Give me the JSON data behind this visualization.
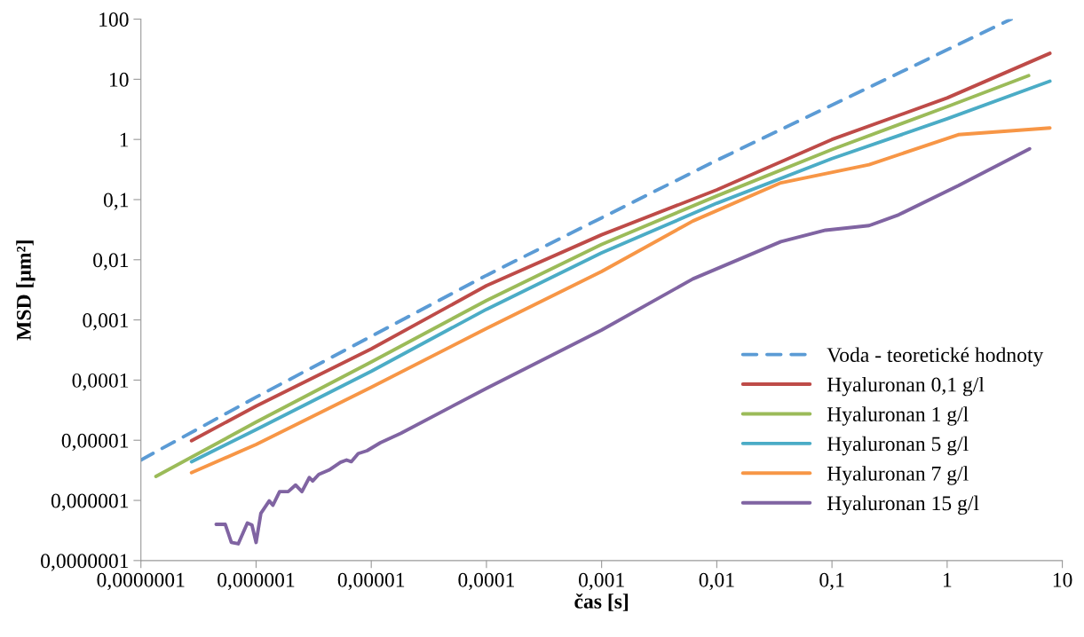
{
  "chart_data": {
    "type": "line",
    "xlabel": "čas [s]",
    "ylabel": "MSD [µm²]",
    "log": "xy",
    "grid": false,
    "legend": "bottom right",
    "marker": "none",
    "xlim": [
      1e-07,
      10
    ],
    "ylim": [
      1e-07,
      100
    ],
    "xticks": [
      {
        "value": 1e-07,
        "label": "0,0000001"
      },
      {
        "value": 1e-06,
        "label": "0,000001"
      },
      {
        "value": 1e-05,
        "label": "0,00001"
      },
      {
        "value": 0.0001,
        "label": "0,0001"
      },
      {
        "value": 0.001,
        "label": "0,001"
      },
      {
        "value": 0.01,
        "label": "0,01"
      },
      {
        "value": 0.1,
        "label": "0,1"
      },
      1,
      10
    ],
    "yticks": [
      {
        "value": 1e-07,
        "label": "0,0000001"
      },
      {
        "value": 1e-06,
        "label": "0,000001"
      },
      {
        "value": 1e-05,
        "label": "0,00001"
      },
      {
        "value": 0.0001,
        "label": "0,0001"
      },
      {
        "value": 0.001,
        "label": "0,001"
      },
      {
        "value": 0.01,
        "label": "0,01"
      },
      {
        "value": 0.1,
        "label": "0,1"
      },
      1,
      10,
      100
    ],
    "series": [
      {
        "name": "Voda - teoretické hodnoty",
        "color": "#5b9bd5",
        "line_style": "dashed",
        "x": [
          1e-07,
          1e-06,
          0.0001,
          0.01,
          3.6
        ],
        "values": [
          4.7e-06,
          5.2e-05,
          0.0055,
          0.45,
          100
        ]
      },
      {
        "name": "Hyaluronan 0,1 g/l",
        "color": "#be4b48",
        "line_style": "solid",
        "x": [
          2.75e-07,
          1e-06,
          1e-05,
          0.0001,
          0.001,
          0.01,
          0.1,
          1,
          7.8
        ],
        "values": [
          9.8e-06,
          3.7e-05,
          0.00033,
          0.0037,
          0.026,
          0.145,
          1.0,
          4.9,
          27
        ]
      },
      {
        "name": "Hyaluronan 1 g/l",
        "color": "#9bbb59",
        "line_style": "solid",
        "x": [
          1.35e-07,
          1e-06,
          1e-05,
          0.0001,
          0.001,
          0.01,
          0.1,
          1,
          5.1
        ],
        "values": [
          2.5e-06,
          2e-05,
          0.0002,
          0.0021,
          0.018,
          0.115,
          0.68,
          3.5,
          11.5
        ]
      },
      {
        "name": "Hyaluronan 5 g/l",
        "color": "#4bacc6",
        "line_style": "solid",
        "x": [
          2.75e-07,
          1e-06,
          1e-05,
          0.0001,
          0.001,
          0.01,
          0.1,
          1,
          7.8
        ],
        "values": [
          4.4e-06,
          1.5e-05,
          0.00014,
          0.0015,
          0.013,
          0.087,
          0.48,
          2.2,
          9.3
        ]
      },
      {
        "name": "Hyaluronan 7 g/l",
        "color": "#f79646",
        "line_style": "solid",
        "x": [
          2.75e-07,
          1e-06,
          1e-05,
          0.0001,
          0.001,
          0.0062,
          0.036,
          0.21,
          1.25,
          7.8
        ],
        "values": [
          2.9e-06,
          8.5e-06,
          7.6e-05,
          0.00072,
          0.0064,
          0.044,
          0.19,
          0.38,
          1.2,
          1.55
        ]
      },
      {
        "name": "Hyaluronan 15 g/l",
        "color": "#8064a2",
        "line_style": "solid",
        "x": [
          4.5e-07,
          5.4e-07,
          6.1e-07,
          7e-07,
          8.4e-07,
          9.2e-07,
          1e-06,
          1.1e-06,
          1.3e-06,
          1.4e-06,
          1.6e-06,
          1.9e-06,
          2.2e-06,
          2.5e-06,
          2.9e-06,
          3.1e-06,
          3.5e-06,
          4.3e-06,
          5.4e-06,
          6.1e-06,
          6.7e-06,
          7.7e-06,
          9.2e-06,
          1.2e-05,
          1.8e-05,
          0.0001,
          0.001,
          0.0062,
          0.036,
          0.088,
          0.21,
          0.38,
          1.25,
          5.2
        ],
        "values": [
          4e-07,
          4e-07,
          2e-07,
          1.9e-07,
          4.2e-07,
          3.9e-07,
          2e-07,
          6.1e-07,
          9.8e-07,
          8.3e-07,
          1.4e-06,
          1.4e-06,
          1.8e-06,
          1.4e-06,
          2.4e-06,
          2.1e-06,
          2.7e-06,
          3.2e-06,
          4.3e-06,
          4.7e-06,
          4.4e-06,
          6e-06,
          6.7e-06,
          9.1e-06,
          1.3e-05,
          7.3e-05,
          0.00068,
          0.0048,
          0.02,
          0.031,
          0.037,
          0.056,
          0.17,
          0.7
        ]
      }
    ]
  }
}
